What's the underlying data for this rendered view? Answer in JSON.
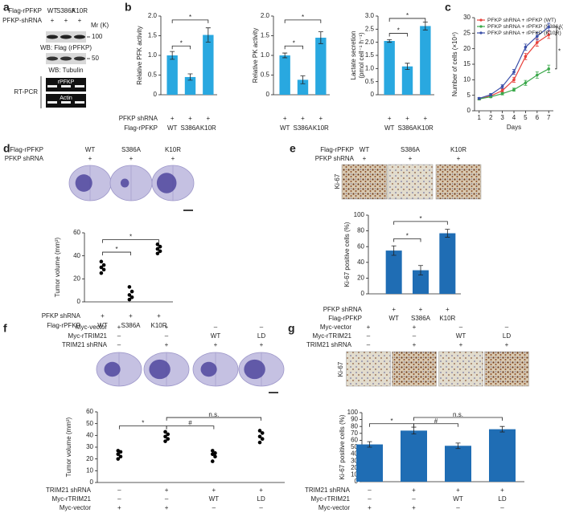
{
  "panels": {
    "a": {
      "letter": "a",
      "rows": [
        {
          "name": "Flag-rPFKP",
          "values": [
            "WT",
            "S386A",
            "K10R"
          ]
        },
        {
          "name": "PFKP-shRNA",
          "values": [
            "+",
            "+",
            "+"
          ]
        }
      ],
      "mr": "Mr (K)",
      "markers": [
        "100",
        "50"
      ],
      "blots": [
        "WB: Flag (rPFKP)",
        "WB: Tubulin"
      ],
      "rtpcr": "RT-PCR",
      "bands": [
        "rPFKP",
        "Actin"
      ]
    },
    "b": {
      "letter": "b"
    },
    "c": {
      "letter": "c"
    },
    "d": {
      "letter": "d",
      "rows": [
        {
          "name": "Flag-rPFKP",
          "values": [
            "WT",
            "S386A",
            "K10R"
          ]
        },
        {
          "name": "PFKP shRNA",
          "values": [
            "+",
            "+",
            "+"
          ]
        }
      ]
    },
    "e": {
      "letter": "e",
      "rows": [
        {
          "name": "Flag-rPFKP",
          "values": [
            "WT",
            "S386A",
            "K10R"
          ]
        },
        {
          "name": "PFKP shRNA",
          "values": [
            "+",
            "+",
            "+"
          ]
        }
      ],
      "stain": "Ki-67"
    },
    "f": {
      "letter": "f",
      "rows": [
        {
          "name": "Myc-vector",
          "values": [
            "+",
            "+",
            "–",
            "–"
          ]
        },
        {
          "name": "Myc-rTRIM21",
          "values": [
            "–",
            "–",
            "WT",
            "LD"
          ]
        },
        {
          "name": "TRIM21 shRNA",
          "values": [
            "–",
            "+",
            "+",
            "+"
          ]
        }
      ]
    },
    "g": {
      "letter": "g",
      "rows": [
        {
          "name": "Myc-vector",
          "values": [
            "+",
            "+",
            "–",
            "–"
          ]
        },
        {
          "name": "Myc-rTRIM21",
          "values": [
            "–",
            "–",
            "WT",
            "LD"
          ]
        },
        {
          "name": "TRIM21 shRNA",
          "values": [
            "–",
            "+",
            "+",
            "+"
          ]
        }
      ],
      "stain": "Ki-67"
    }
  },
  "chart_data": [
    {
      "type": "bar",
      "ylabel": [
        "Relative PFK activity"
      ],
      "ylim": [
        0,
        2
      ],
      "yticks": [
        0,
        0.5,
        {
          "value": 1,
          "label": "1.0"
        },
        1.5,
        {
          "value": 2,
          "label": "2.0"
        }
      ],
      "values": [
        1.0,
        0.45,
        1.52
      ],
      "errors": [
        0.1,
        0.08,
        0.18
      ],
      "color": "#29a8e0",
      "rows": [
        {
          "name": "PFKP shRNA",
          "values": [
            "+",
            "+",
            "+"
          ]
        },
        {
          "name": "Flag-rPFKP",
          "values": [
            "WT",
            "S386A",
            "K10R"
          ]
        }
      ],
      "annotations": [
        "*",
        "*"
      ]
    },
    {
      "type": "bar",
      "ylabel": [
        "Relative PK activity"
      ],
      "ylim": [
        0,
        2
      ],
      "yticks": [
        0,
        0.5,
        {
          "value": 1,
          "label": "1.0"
        },
        1.5,
        {
          "value": 2,
          "label": "2.0"
        }
      ],
      "values": [
        1.0,
        0.38,
        1.45
      ],
      "errors": [
        0.06,
        0.1,
        0.15
      ],
      "color": "#29a8e0",
      "rows": [
        {
          "values": [
            "+",
            "+",
            "+"
          ]
        },
        {
          "values": [
            "WT",
            "S386A",
            "K10R"
          ]
        }
      ],
      "annotations": [
        "*",
        "*"
      ]
    },
    {
      "type": "bar",
      "ylabel": [
        "Lactate secretion",
        "(pmol cell⁻¹ h⁻¹)"
      ],
      "ylim": [
        0,
        3
      ],
      "yticks": [
        0,
        0.5,
        {
          "value": 1,
          "label": "1.0"
        },
        1.5,
        {
          "value": 2,
          "label": "2.0"
        },
        2.5,
        {
          "value": 3,
          "label": "3.0"
        }
      ],
      "values": [
        2.05,
        1.08,
        2.62
      ],
      "errors": [
        0.05,
        0.12,
        0.15
      ],
      "color": "#29a8e0",
      "rows": [
        {
          "values": [
            "+",
            "+",
            "+"
          ]
        },
        {
          "values": [
            "WT",
            "S386A",
            "K10R"
          ]
        }
      ],
      "annotations": [
        "*",
        "*"
      ]
    },
    {
      "type": "line",
      "ylabel": [
        "Number of cells (×10⁴)"
      ],
      "xlabel": "Days",
      "x": [
        1,
        2,
        3,
        4,
        5,
        6,
        7
      ],
      "xlim": [
        0.6,
        7.4
      ],
      "xticks": [
        1,
        2,
        3,
        4,
        5,
        6,
        7
      ],
      "ylim": [
        0,
        30
      ],
      "yticks": [
        0,
        5,
        10,
        15,
        20,
        25,
        30
      ],
      "legend": "upper left",
      "series": [
        {
          "name": "PFKP shRNA + rPFKP (WT)",
          "color": "#e8413b",
          "values": [
            3.8,
            4.8,
            6.5,
            10,
            17.5,
            22,
            24.5
          ],
          "errors": [
            0.3,
            0.4,
            0.5,
            0.8,
            1.0,
            1.2,
            1.2
          ]
        },
        {
          "name": "PFKP shRNA + rPFKP (S386A)",
          "color": "#3aa84a",
          "values": [
            3.8,
            4.5,
            5.5,
            6.8,
            9,
            11.5,
            13.5
          ],
          "errors": [
            0.3,
            0.3,
            0.4,
            0.5,
            0.8,
            1.0,
            1.2
          ]
        },
        {
          "name": "PFKP shRNA + rPFKP (K10R)",
          "color": "#3b4fa8",
          "values": [
            4,
            5.2,
            7.8,
            12.5,
            20.5,
            24,
            27
          ],
          "errors": [
            0.3,
            0.4,
            0.6,
            0.8,
            1.0,
            1.2,
            1.2
          ]
        }
      ],
      "annotations": [
        "*",
        "*"
      ]
    },
    {
      "type": "dot",
      "ylabel": [
        "Tumor volume (mm³)"
      ],
      "ylim": [
        0,
        60
      ],
      "yticks": [
        0,
        20,
        40,
        60
      ],
      "color": "#000000",
      "values": [
        [
          25,
          28,
          30,
          32,
          35
        ],
        [
          2,
          4,
          6,
          9,
          13
        ],
        [
          42,
          44,
          46,
          48,
          50
        ]
      ],
      "rows": [
        {
          "name": "PFKP shRNA",
          "values": [
            "+",
            "+",
            "+"
          ]
        },
        {
          "name": "Flag-rPFKP",
          "values": [
            "WT",
            "S386A",
            "K10R"
          ]
        }
      ],
      "annotations": [
        "*",
        "*"
      ]
    },
    {
      "type": "bar",
      "ylabel": [
        "Ki-67 positive cells (%)"
      ],
      "ylim": [
        0,
        100
      ],
      "yticks": [
        0,
        20,
        40,
        60,
        80,
        100
      ],
      "values": [
        55,
        30,
        77
      ],
      "errors": [
        6,
        6,
        5
      ],
      "color": "#1f6db4",
      "rows": [
        {
          "name": "PFKP shRNA",
          "values": [
            "+",
            "+",
            "+"
          ]
        },
        {
          "name": "Flag-rPFKP",
          "values": [
            "WT",
            "S386A",
            "K10R"
          ]
        }
      ],
      "annotations": [
        "*",
        "*"
      ]
    },
    {
      "type": "dot",
      "ylabel": [
        "Tumor volume (mm³)"
      ],
      "ylim": [
        0,
        60
      ],
      "yticks": [
        0,
        10,
        20,
        30,
        40,
        50,
        60
      ],
      "color": "#000000",
      "values": [
        [
          20,
          22,
          24,
          26,
          27
        ],
        [
          35,
          37,
          39,
          41,
          43
        ],
        [
          18,
          22,
          24,
          25,
          27
        ],
        [
          34,
          37,
          39,
          42,
          44
        ]
      ],
      "rows": [
        {
          "name": "TRIM21 shRNA",
          "values": [
            "–",
            "+",
            "+",
            "+"
          ]
        },
        {
          "name": "Myc-rTRIM21",
          "values": [
            "–",
            "–",
            "WT",
            "LD"
          ]
        },
        {
          "name": "Myc-vector",
          "values": [
            "+",
            "+",
            "–",
            "–"
          ]
        }
      ],
      "annotations": [
        "*",
        "#",
        "n.s."
      ]
    },
    {
      "type": "bar",
      "ylabel": [
        "Ki-67 positive cells (%)"
      ],
      "ylim": [
        0,
        100
      ],
      "yticks": [
        0,
        10,
        20,
        30,
        40,
        50,
        60,
        70,
        80,
        90,
        100
      ],
      "values": [
        54,
        74,
        52,
        76
      ],
      "errors": [
        4,
        5,
        4,
        4
      ],
      "color": "#1f6db4",
      "rows": [
        {
          "name": "TRIM21 shRNA",
          "values": [
            "–",
            "+",
            "+",
            "+"
          ]
        },
        {
          "name": "Myc-rTRIM21",
          "values": [
            "–",
            "–",
            "WT",
            "LD"
          ]
        },
        {
          "name": "Myc-vector",
          "values": [
            "+",
            "+",
            "–",
            "–"
          ]
        }
      ],
      "annotations": [
        "*",
        "#",
        "n.s."
      ]
    }
  ]
}
